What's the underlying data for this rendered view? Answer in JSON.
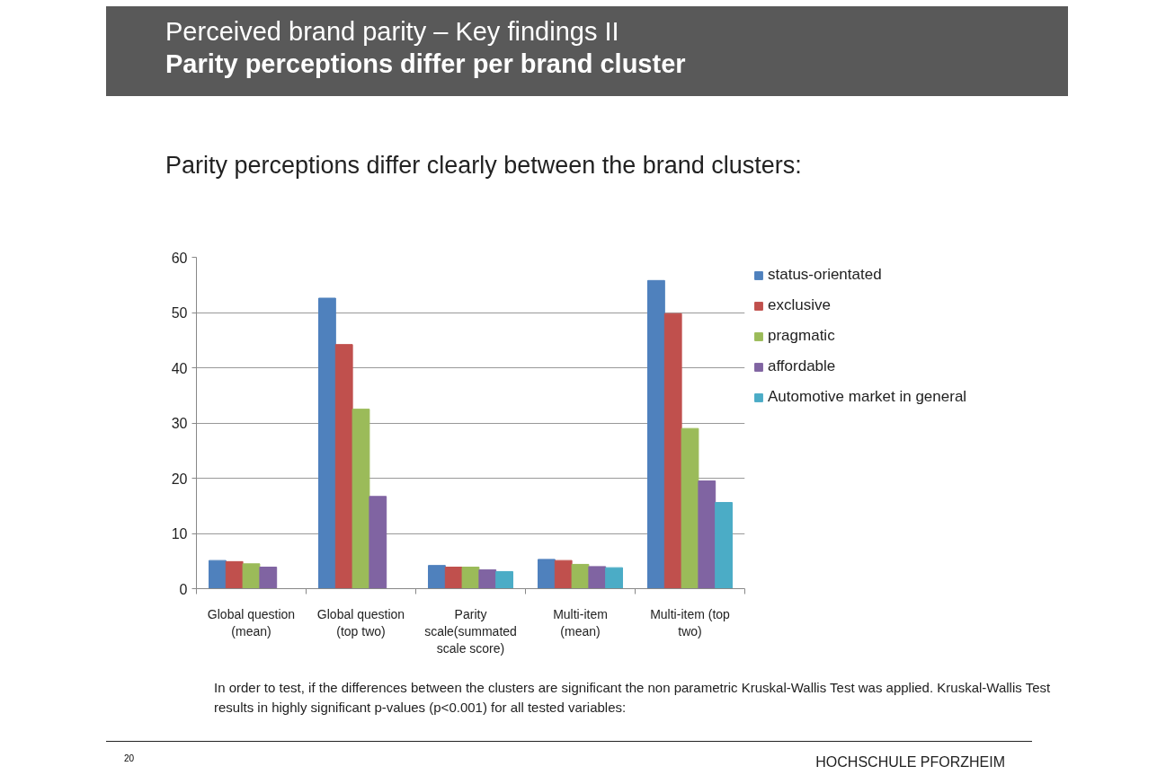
{
  "chart_data": {
    "type": "bar",
    "title": "Perceived brand parity – Key findings II",
    "subtitle": "Parity perceptions differ per brand cluster",
    "categories": [
      "Global question (mean)",
      "Global question (top two)",
      "Parity scale(summated scale score)",
      "Multi-item (mean)",
      "Multi-item (top two)"
    ],
    "series": [
      {
        "name": "status-orientated",
        "color": "#4f81bd",
        "values": [
          5.1,
          52.6,
          4.2,
          5.3,
          55.8
        ]
      },
      {
        "name": "exclusive",
        "color": "#c0504d",
        "values": [
          4.9,
          44.2,
          3.9,
          5.1,
          49.8
        ]
      },
      {
        "name": "pragmatic",
        "color": "#9bbb59",
        "values": [
          4.5,
          32.5,
          3.9,
          4.4,
          29.0
        ]
      },
      {
        "name": "affordable",
        "color": "#8064a2",
        "values": [
          3.9,
          16.7,
          3.4,
          4.0,
          19.5
        ]
      },
      {
        "name": "Automotive market in general",
        "color": "#4bacc6",
        "values": [
          null,
          null,
          3.1,
          3.8,
          15.6
        ]
      }
    ],
    "ylim": [
      0,
      60
    ],
    "yticks": [
      0,
      10,
      20,
      30,
      40,
      50,
      60
    ],
    "grid": "y",
    "legend": "right",
    "annotations": [
      "Parity perceptions differ clearly between the brand clusters:",
      "In order to test, if the differences between the clusters are significant the non parametric Kruskal-Wallis Test was applied. Kruskal-Wallis Test results in highly significant p-values (p<0.001) for all tested variables:",
      "20",
      "HOCHSCHULE PFORZHEIM"
    ]
  }
}
